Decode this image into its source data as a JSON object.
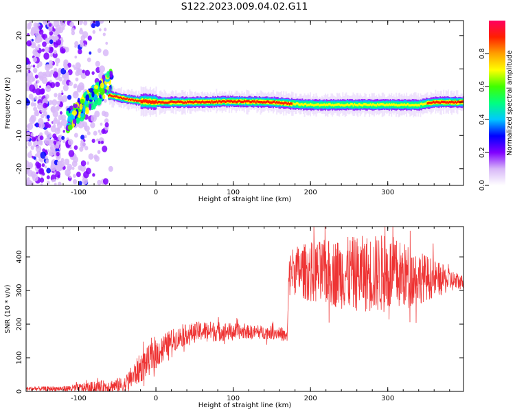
{
  "title": "S122.2023.009.04.02.G11",
  "chart_data": [
    {
      "type": "heatmap",
      "xlabel": "Height of straight line (km)",
      "ylabel": "Frequency (Hz)",
      "xlim": [
        -168,
        398
      ],
      "ylim": [
        -25,
        24.5
      ],
      "xticks": [
        -100,
        0,
        100,
        200,
        300
      ],
      "yticks": [
        -20,
        -10,
        0,
        10,
        20
      ],
      "colorbar": {
        "label": "Normalized spectral amplitude",
        "range": [
          0,
          1
        ],
        "ticks": [
          "0.0",
          "0.2",
          "0.4",
          "0.6",
          "0.8"
        ],
        "colors": [
          "#ffffff",
          "#d8b8f8",
          "#8000ff",
          "#0000ff",
          "#00c8ff",
          "#00ff80",
          "#40ff00",
          "#ffff00",
          "#ffa000",
          "#ff2000",
          "#ff0060"
        ]
      },
      "ridge": {
        "description_points_x": [
          -60,
          -40,
          -20,
          0,
          50,
          100,
          150,
          175,
          200,
          250,
          300,
          340,
          360,
          398
        ],
        "frequency_hz": [
          2,
          1,
          0.3,
          0,
          0,
          0.2,
          0,
          -0.5,
          -0.8,
          -0.8,
          -0.8,
          -0.8,
          0,
          0
        ]
      }
    },
    {
      "type": "line",
      "xlabel": "Height of straight line (km)",
      "ylabel": "SNR (10 * v/v)",
      "xlim": [
        -168,
        398
      ],
      "ylim": [
        0,
        490
      ],
      "xticks": [
        -100,
        0,
        100,
        200,
        300
      ],
      "yticks": [
        0,
        100,
        200,
        300,
        400
      ],
      "color": "#ee3333",
      "series": [
        {
          "x": [
            -168,
            -120,
            -80,
            -60,
            -40,
            -20,
            0,
            20,
            40,
            60,
            80,
            100,
            120,
            140,
            160,
            170,
            172,
            175,
            200,
            250,
            300,
            340,
            380,
            398
          ],
          "values": [
            8,
            8,
            12,
            15,
            20,
            70,
            110,
            150,
            170,
            180,
            178,
            178,
            177,
            175,
            175,
            160,
            330,
            360,
            355,
            350,
            350,
            340,
            330,
            325
          ],
          "noise_amplitude": [
            6,
            8,
            18,
            20,
            25,
            45,
            45,
            35,
            30,
            30,
            30,
            25,
            20,
            20,
            20,
            20,
            60,
            70,
            90,
            110,
            120,
            80,
            35,
            20
          ]
        }
      ]
    }
  ]
}
